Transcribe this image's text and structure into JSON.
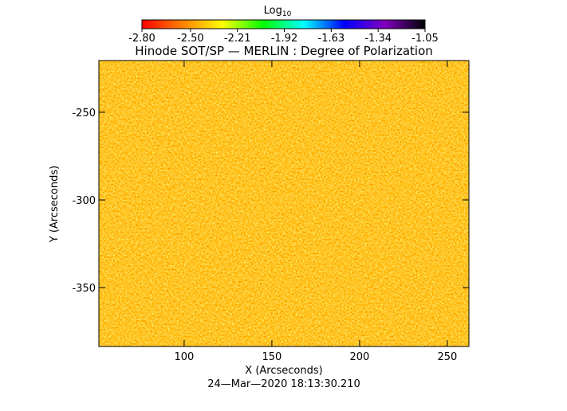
{
  "chart_data": {
    "type": "image",
    "title": "Hinode SOT/SP — MERLIN : Degree of Polarization",
    "xlabel": "X (Arcseconds)",
    "ylabel": "Y (Arcseconds)",
    "footer": "24—Mar—2020 18:13:30.210",
    "colorbar_label": "Log",
    "colorbar_label_subscript": "10",
    "colorbar_lim": [
      -2.8,
      -1.05
    ],
    "colorbar_ticks": [
      {
        "value": -2.8,
        "label": "-2.80"
      },
      {
        "value": -2.5,
        "label": "-2.50"
      },
      -2.21,
      -1.92,
      -1.63,
      -1.34,
      -1.05
    ],
    "colormap": [
      "#ff0000",
      "#ff8000",
      "#ffff00",
      "#00ff00",
      "#00ffff",
      "#0000ff",
      "#8000c0",
      "#000000"
    ],
    "xlim": [
      51.4,
      262.3
    ],
    "xticks": [
      100,
      150,
      200,
      250
    ],
    "ylim": [
      -383.6,
      -220.5
    ],
    "yticks": [
      -250,
      -300,
      -350
    ]
  }
}
